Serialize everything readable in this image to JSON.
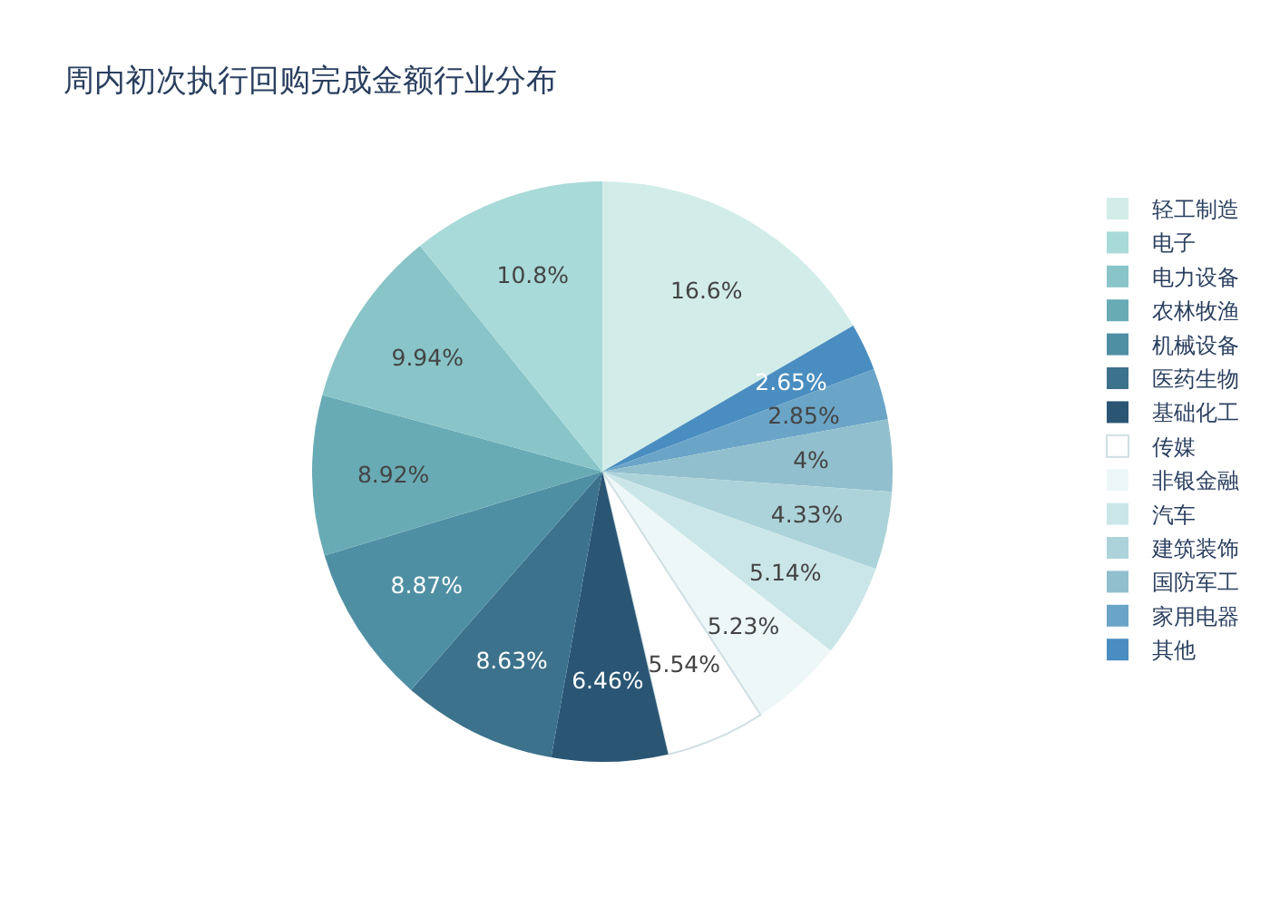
{
  "chart_data": {
    "type": "pie",
    "title": "周内初次执行回购完成金额行业分布",
    "categories": [
      "轻工制造",
      "电子",
      "电力设备",
      "农林牧渔",
      "机械设备",
      "医药生物",
      "基础化工",
      "传媒",
      "非银金融",
      "汽车",
      "建筑装饰",
      "国防军工",
      "家用电器",
      "其他"
    ],
    "values": [
      16.6,
      10.8,
      9.94,
      8.92,
      8.87,
      8.63,
      6.46,
      5.54,
      5.23,
      5.14,
      4.33,
      4,
      2.85,
      2.65
    ],
    "colors": [
      "#d2ede9",
      "#a8dad9",
      "#88c4c8",
      "#69abb5",
      "#4f8fa3",
      "#3c728b",
      "#2a5674",
      "#ffffff",
      "#eef7f8",
      "#cbe6e8",
      "#acd3da",
      "#92bfcd",
      "#6aa5c7",
      "#4a8dc0"
    ],
    "value_labels": [
      "16.6%",
      "10.8%",
      "9.94%",
      "8.92%",
      "8.87%",
      "8.63%",
      "6.46%",
      "5.54%",
      "5.23%",
      "5.14%",
      "4.33%",
      "4%",
      "2.85%",
      "2.65%"
    ],
    "legend": "right"
  }
}
